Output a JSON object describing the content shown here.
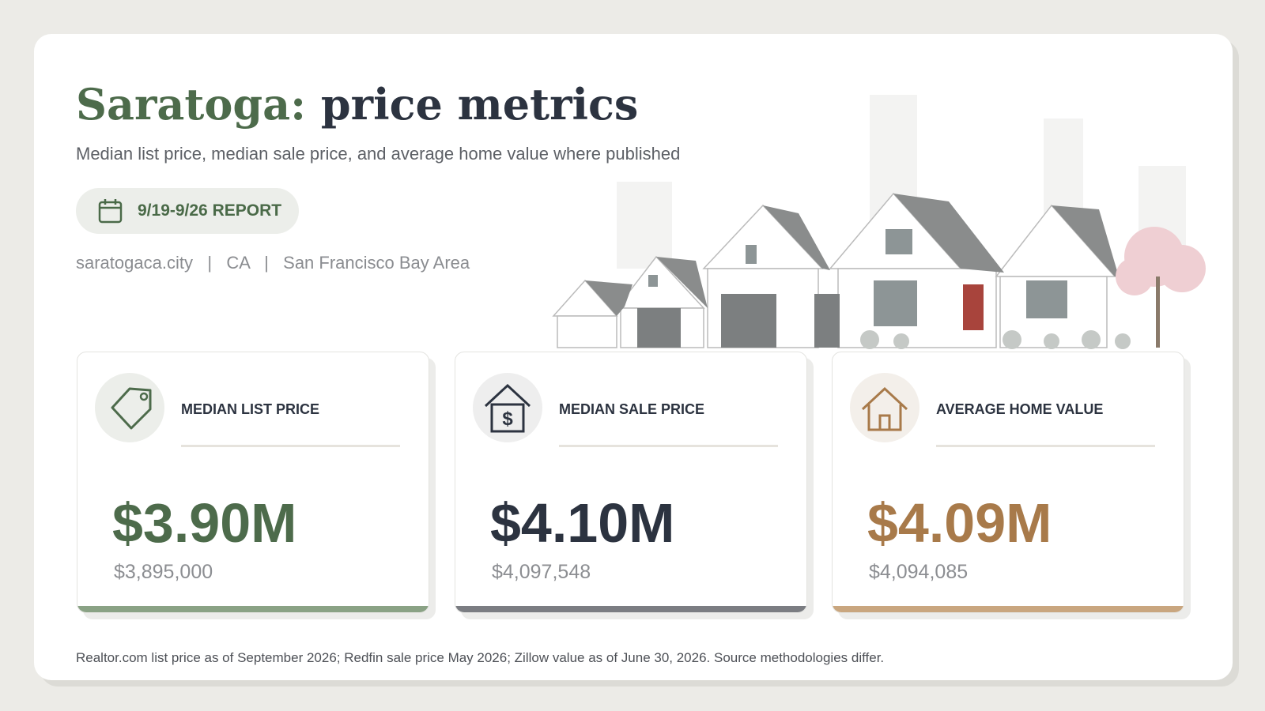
{
  "header": {
    "title_place": "Saratoga:",
    "title_rest": "price metrics",
    "subtitle": "Median list price, median sale price, and average home value where published"
  },
  "badge": "9/19-9/26 REPORT",
  "meta": {
    "items": [
      "saratogaca.city",
      "CA",
      "San Francisco Bay Area"
    ],
    "separator": "|"
  },
  "cards": [
    {
      "label": "MEDIAN LIST PRICE",
      "value": "$3.90M",
      "exact": "$3,895,000"
    },
    {
      "label": "MEDIAN SALE PRICE",
      "value": "$4.10M",
      "exact": "$4,097,548"
    },
    {
      "label": "AVERAGE HOME VALUE",
      "value": "$4.09M",
      "exact": "$4,094,085"
    }
  ],
  "footer": "Realtor.com list price as of September 2026; Redfin sale price May 2026; Zillow value as of June 30, 2026. Source methodologies differ."
}
